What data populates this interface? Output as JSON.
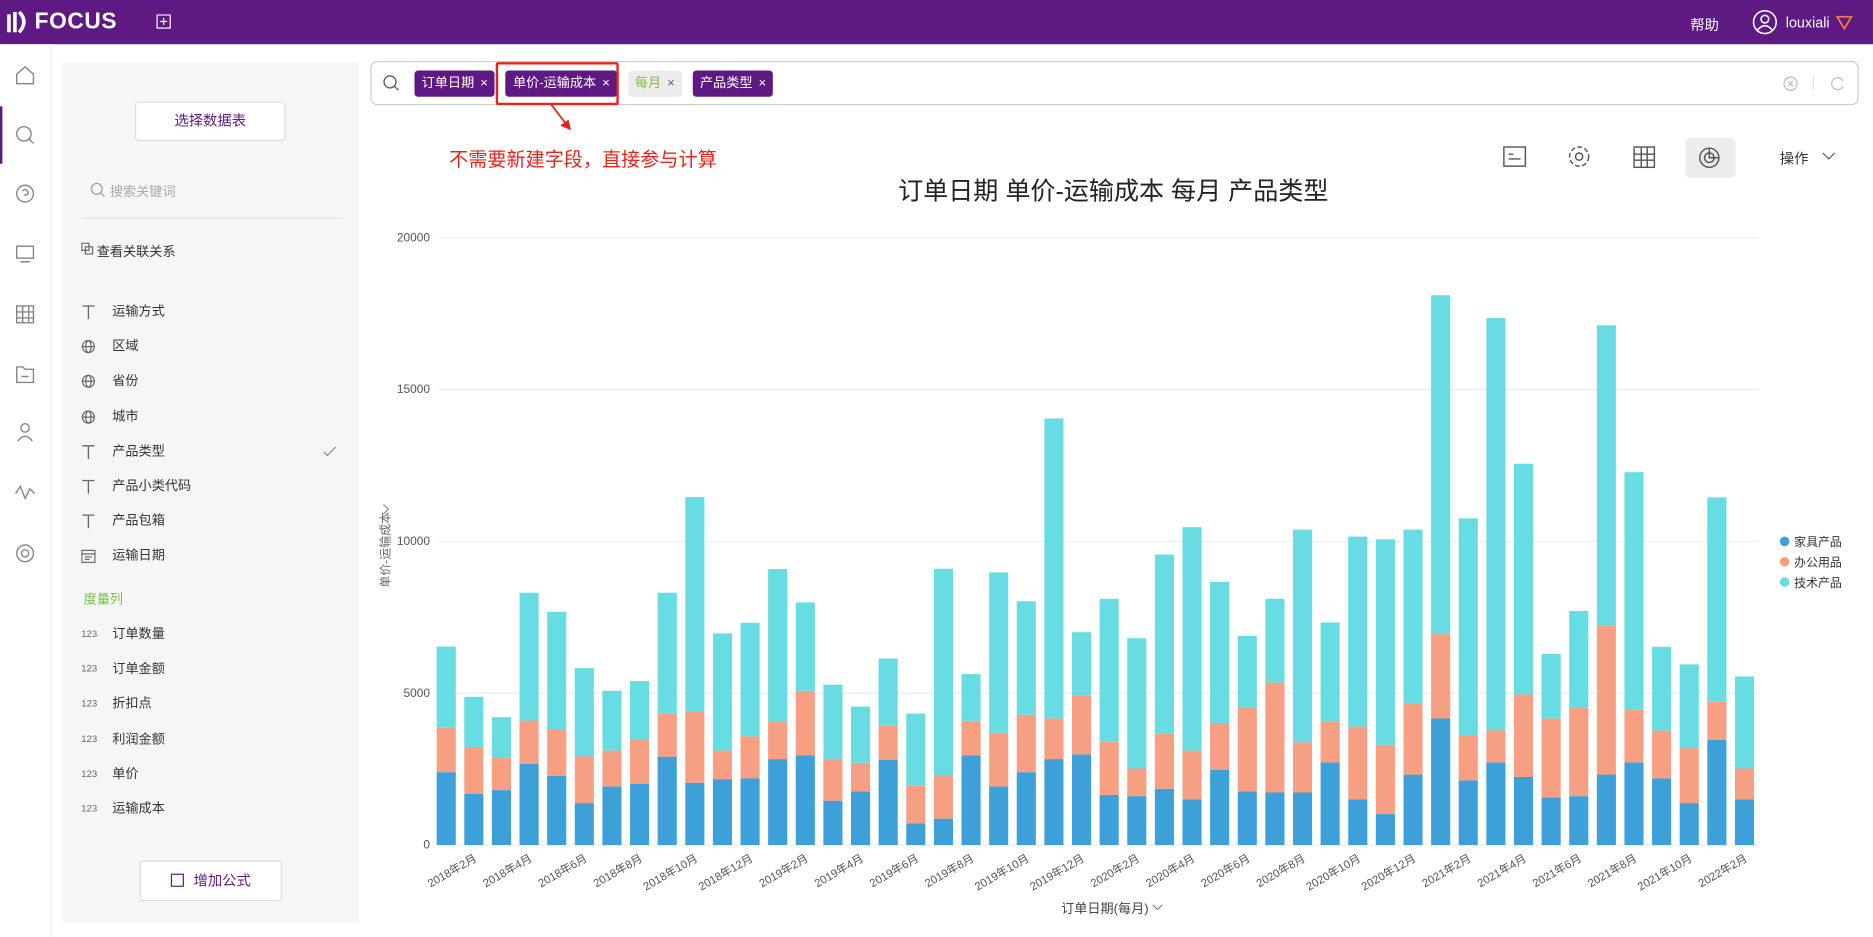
{
  "header": {
    "logo": "FOCUS",
    "help": "帮助",
    "user": "louxiali"
  },
  "sidebar": {
    "select_table": "选择数据表",
    "search_placeholder": "搜索关键词",
    "relations": "查看关联关系",
    "dimension_fields": [
      {
        "icon": "text",
        "name": "运输方式"
      },
      {
        "icon": "geo",
        "name": "区域"
      },
      {
        "icon": "geo",
        "name": "省份"
      },
      {
        "icon": "geo",
        "name": "城市"
      },
      {
        "icon": "text",
        "name": "产品类型",
        "checked": true
      },
      {
        "icon": "text",
        "name": "产品小类代码"
      },
      {
        "icon": "text",
        "name": "产品包箱"
      },
      {
        "icon": "date",
        "name": "运输日期"
      }
    ],
    "measure_heading": "度量列",
    "measure_fields": [
      {
        "icon": "123",
        "name": "订单数量"
      },
      {
        "icon": "123",
        "name": "订单金额"
      },
      {
        "icon": "123",
        "name": "折扣点"
      },
      {
        "icon": "123",
        "name": "利润金额"
      },
      {
        "icon": "123",
        "name": "单价"
      },
      {
        "icon": "123",
        "name": "运输成本"
      }
    ],
    "add_formula": "增加公式"
  },
  "search_tokens": [
    {
      "text": "订单日期",
      "kind": "column"
    },
    {
      "text": "单价-运输成本",
      "kind": "column",
      "highlight": true
    },
    {
      "text": "每月",
      "kind": "keyword"
    },
    {
      "text": "产品类型",
      "kind": "column"
    }
  ],
  "annotation": "不需要新建字段，直接参与计算",
  "toolbar": {
    "actions": "操作"
  },
  "chart_data": {
    "type": "stacked_bar",
    "title": "订单日期 单价-运输成本 每月 产品类型",
    "x_label": "订单日期(每月)",
    "y_label": "单价-运输成本",
    "categories": [
      null,
      "2018年2月",
      null,
      "2018年4月",
      null,
      "2018年6月",
      null,
      "2018年8月",
      null,
      "2018年10月",
      null,
      "2018年12月",
      null,
      "2019年2月",
      null,
      "2019年4月",
      null,
      "2019年6月",
      null,
      "2019年8月",
      null,
      "2019年10月",
      null,
      "2019年12月",
      null,
      "2020年2月",
      null,
      "2020年4月",
      null,
      "2020年6月",
      null,
      "2020年8月",
      null,
      "2020年10月",
      null,
      "2020年12月",
      null,
      "2021年2月",
      null,
      "2021年4月",
      null,
      "2021年6月",
      null,
      "2021年8月",
      null,
      "2021年10月",
      null,
      "2022年2月"
    ],
    "series": [
      {
        "name": "家具产品",
        "color": "#3ea0d9",
        "values": [
          2400,
          1690,
          1810,
          2680,
          2280,
          1380,
          1930,
          2010,
          2910,
          2050,
          2170,
          2200,
          2830,
          2950,
          1460,
          1770,
          2800,
          710,
          870,
          2950,
          1930,
          2400,
          2830,
          2990,
          1650,
          1610,
          1850,
          1500,
          2480,
          1770,
          1730,
          1730,
          2720,
          1500,
          1020,
          2320,
          4170,
          2130,
          2720,
          2240,
          1570,
          1610,
          2320,
          2720,
          2200,
          1380,
          3460,
          1500
        ]
      },
      {
        "name": "办公用品",
        "color": "#f79f82",
        "values": [
          1460,
          1540,
          1060,
          1420,
          1540,
          1540,
          1180,
          1460,
          1420,
          2360,
          940,
          1380,
          1220,
          2130,
          1380,
          940,
          1140,
          1260,
          1420,
          1140,
          1770,
          1890,
          1340,
          1930,
          1770,
          910,
          1810,
          1610,
          1540,
          2760,
          3620,
          1650,
          1340,
          2400,
          2280,
          2360,
          2800,
          1460,
          1060,
          2720,
          2600,
          2910,
          4920,
          1730,
          1570,
          1810,
          1260,
          1020
        ]
      },
      {
        "name": "技术产品",
        "color": "#67dde3",
        "values": [
          2680,
          1650,
          1340,
          4210,
          3860,
          2910,
          1970,
          1930,
          3980,
          7050,
          3860,
          3740,
          5040,
          2910,
          2440,
          1850,
          2200,
          2360,
          6810,
          1540,
          5280,
          3740,
          9880,
          2090,
          4690,
          4290,
          5910,
          7360,
          4650,
          2360,
          2760,
          7010,
          3270,
          6260,
          6770,
          5710,
          11140,
          7170,
          13580,
          7600,
          2130,
          3190,
          9880,
          7830,
          2760,
          2760,
          6730,
          3030
        ]
      }
    ],
    "ylim": [
      0,
      20000
    ],
    "yticks": [
      0,
      5000,
      10000,
      15000,
      20000
    ],
    "grid": true,
    "legend": "right"
  }
}
